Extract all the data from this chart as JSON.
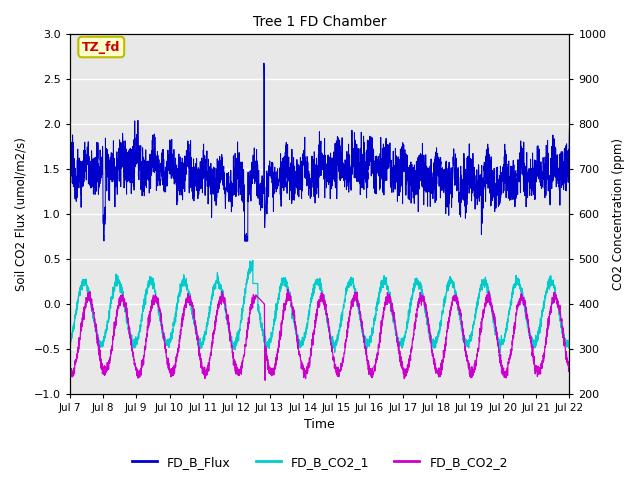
{
  "title": "Tree 1 FD Chamber",
  "xlabel": "Time",
  "ylabel_left": "Soil CO2 Flux (umol/m2/s)",
  "ylabel_right": "CO2 Concentration (ppm)",
  "ylim_left": [
    -1.0,
    3.0
  ],
  "ylim_right": [
    200,
    1000
  ],
  "yticks_left": [
    -1.0,
    -0.5,
    0.0,
    0.5,
    1.0,
    1.5,
    2.0,
    2.5,
    3.0
  ],
  "yticks_right": [
    200,
    300,
    400,
    500,
    600,
    700,
    800,
    900,
    1000
  ],
  "xtick_labels": [
    "Jul 7",
    "Jul 8",
    "Jul 9",
    "Jul 10",
    "Jul 11",
    "Jul 12",
    "Jul 13",
    "Jul 14",
    "Jul 15",
    "Jul 16",
    "Jul 17",
    "Jul 18",
    "Jul 19",
    "Jul 20",
    "Jul 21",
    "Jul 22"
  ],
  "annotation_text": "TZ_fd",
  "annotation_color": "#cc0000",
  "annotation_bg": "#ffffcc",
  "annotation_border": "#bbbb00",
  "flux_color": "#0000cc",
  "co2_1_color": "#00cccc",
  "co2_2_color": "#cc00cc",
  "legend_labels": [
    "FD_B_Flux",
    "FD_B_CO2_1",
    "FD_B_CO2_2"
  ],
  "bg_color": "#e8e8e8",
  "grid_color": "white",
  "n_points": 3000,
  "seed": 12345
}
